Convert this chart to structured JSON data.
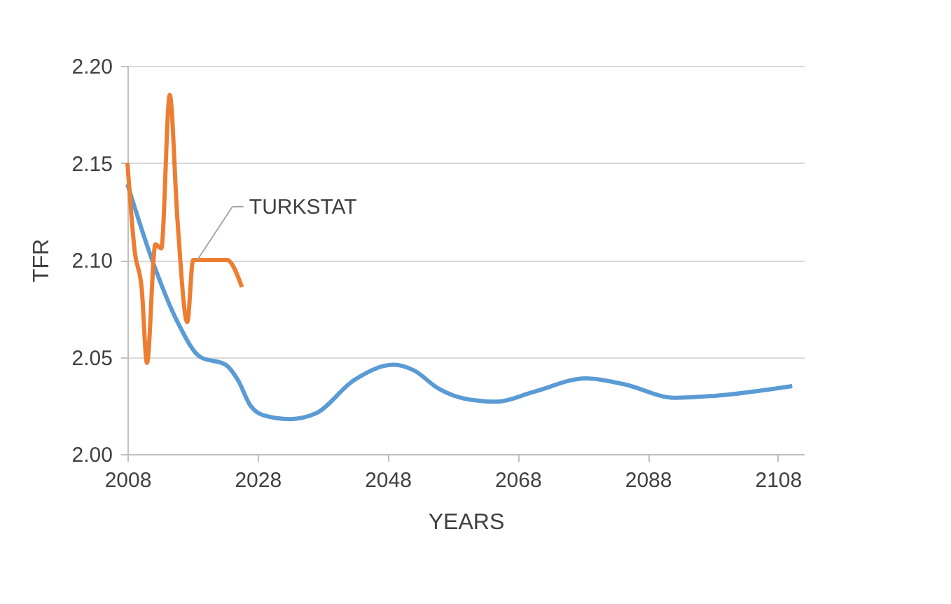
{
  "chart_data": {
    "type": "line",
    "xlabel": "YEARS",
    "ylabel": "TFR",
    "xlim": [
      2008,
      2112
    ],
    "xticks": [
      2008,
      2028,
      2048,
      2068,
      2088,
      2108
    ],
    "ylim": [
      2.0,
      2.2
    ],
    "yticks": [
      {
        "value": 2.0,
        "label": "2.00"
      },
      {
        "value": 2.05,
        "label": "2.05"
      },
      {
        "value": 2.1,
        "label": "2.10"
      },
      {
        "value": 2.15,
        "label": "2.15"
      },
      {
        "value": 2.2,
        "label": "2.20"
      }
    ],
    "grid": "y",
    "marker": "none",
    "line_style": "solid",
    "series": [
      {
        "color": "#5b9bd5",
        "x": [
          2008,
          2011.9,
          2015.7,
          2019.2,
          2023.1,
          2025,
          2026.9,
          2028.9,
          2033,
          2037,
          2042.8,
          2048.9,
          2052.1,
          2055.7,
          2060.7,
          2064.8,
          2070.4,
          2078.5,
          2084.3,
          2092.1,
          2098.3,
          2110.2
        ],
        "values": [
          2.139,
          2.099,
          2.068,
          2.05,
          2.046,
          2.038,
          2.025,
          2.02,
          2.018,
          2.021,
          2.038,
          2.046,
          2.043,
          2.034,
          2.028,
          2.027,
          2.032,
          2.039,
          2.036,
          2.029,
          2.03,
          2.035
        ]
      },
      {
        "name": "TURKSTAT",
        "color": "#ed7d31",
        "x": [
          2008,
          2009.1,
          2010.2,
          2011,
          2012.3,
          2013.2,
          2014.5,
          2015.7,
          2017.2,
          2018.1,
          2020.9,
          2023.3,
          2025.6
        ],
        "values": [
          2.15,
          2.105,
          2.085,
          2.047,
          2.108,
          2.106,
          2.185,
          2.12,
          2.068,
          2.1,
          2.1,
          2.1,
          2.086
        ]
      }
    ]
  }
}
